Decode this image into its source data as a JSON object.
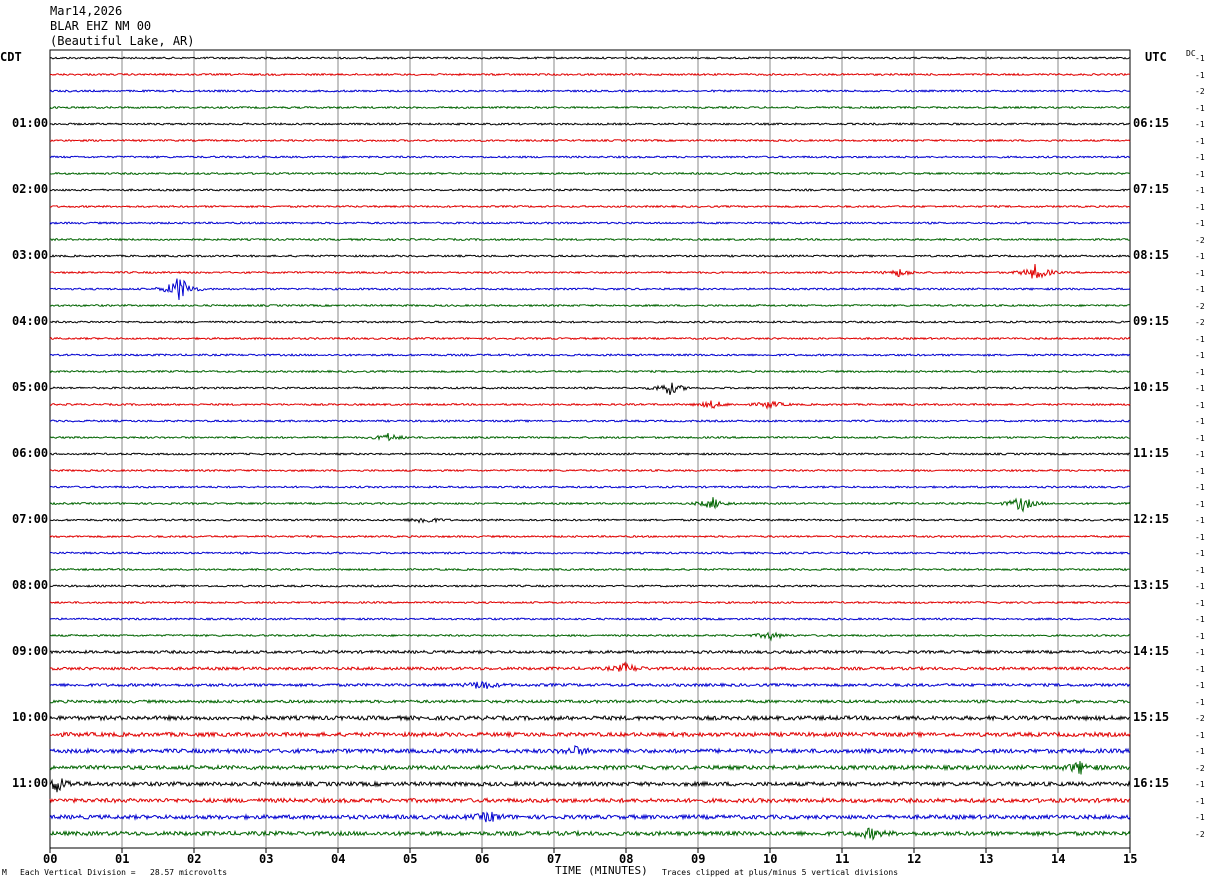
{
  "header": {
    "date": "Mar14,2026",
    "station": "BLAR EHZ NM 00",
    "location": "(Beautiful Lake, AR)"
  },
  "left_tz": "CDT",
  "right_tz": "UTC",
  "dc_label": "DC",
  "footer": {
    "scale": "Each Vertical Division =   28.57 microvolts",
    "xlabel": "TIME (MINUTES)",
    "clip_note": "Traces clipped at plus/minus 5 vertical divisions"
  },
  "chart_data": {
    "type": "line",
    "title": "Mar14,2026 BLAR EHZ NM 00 (Beautiful Lake, AR)",
    "xlabel": "TIME (MINUTES)",
    "xlim": [
      0,
      15
    ],
    "x_ticks": [
      "00",
      "01",
      "02",
      "03",
      "04",
      "05",
      "06",
      "07",
      "08",
      "09",
      "10",
      "11",
      "12",
      "13",
      "14",
      "15"
    ],
    "left_hour_labels": [
      "01:00",
      "02:00",
      "03:00",
      "04:00",
      "05:00",
      "06:00",
      "07:00",
      "08:00",
      "09:00",
      "10:00",
      "11:00"
    ],
    "right_hour_labels": [
      "06:15",
      "07:15",
      "08:15",
      "09:15",
      "10:15",
      "11:15",
      "12:15",
      "13:15",
      "14:15",
      "15:15",
      "16:15"
    ],
    "trace_colors": [
      "#000000",
      "#e00000",
      "#0000d0",
      "#006400"
    ],
    "trace_count": 48,
    "dc_offsets": [
      "-1",
      "-1",
      "-2",
      "-1",
      "-1",
      "-1",
      "-1",
      "-1",
      "-1",
      "-1",
      "-1",
      "-2",
      "-1",
      "-1",
      "-1",
      "-2",
      "-2",
      "-1",
      "-1",
      "-1",
      "-1",
      "-1",
      "-1",
      "-1",
      "-1",
      "-1",
      "-1",
      "-1",
      "-1",
      "-1",
      "-1",
      "-1",
      "-1",
      "-1",
      "-1",
      "-1",
      "-1",
      "-1",
      "-1",
      "-1",
      "-2",
      "-1",
      "-1",
      "-2",
      "-1",
      "-1",
      "-1",
      "-2"
    ],
    "events": [
      {
        "trace": 14,
        "minute": 1.8,
        "amp": 14
      },
      {
        "trace": 13,
        "minute": 11.8,
        "amp": 4
      },
      {
        "trace": 13,
        "minute": 13.7,
        "amp": 9
      },
      {
        "trace": 20,
        "minute": 8.6,
        "amp": 7
      },
      {
        "trace": 21,
        "minute": 9.2,
        "amp": 4
      },
      {
        "trace": 21,
        "minute": 10.0,
        "amp": 4
      },
      {
        "trace": 23,
        "minute": 4.7,
        "amp": 4
      },
      {
        "trace": 27,
        "minute": 9.2,
        "amp": 6
      },
      {
        "trace": 27,
        "minute": 13.5,
        "amp": 8
      },
      {
        "trace": 28,
        "minute": 5.2,
        "amp": 4
      },
      {
        "trace": 35,
        "minute": 10.0,
        "amp": 4
      },
      {
        "trace": 37,
        "minute": 8.0,
        "amp": 5
      },
      {
        "trace": 38,
        "minute": 6.0,
        "amp": 5
      },
      {
        "trace": 42,
        "minute": 7.3,
        "amp": 4
      },
      {
        "trace": 43,
        "minute": 14.3,
        "amp": 6
      },
      {
        "trace": 44,
        "minute": 0.1,
        "amp": 8
      },
      {
        "trace": 46,
        "minute": 6.1,
        "amp": 5
      },
      {
        "trace": 47,
        "minute": 11.4,
        "amp": 5
      }
    ]
  }
}
